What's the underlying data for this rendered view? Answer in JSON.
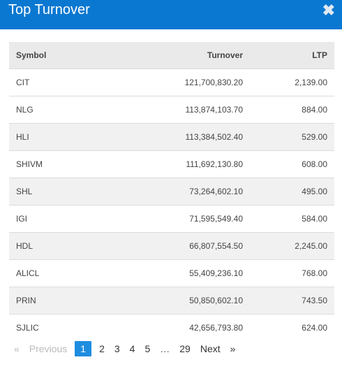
{
  "header": {
    "title": "Top Turnover",
    "close_icon": "close-icon"
  },
  "table": {
    "columns": {
      "symbol": "Symbol",
      "turnover": "Turnover",
      "ltp": "LTP"
    },
    "rows": [
      {
        "symbol": "CIT",
        "turnover": "121,700,830.20",
        "ltp": "2,139.00"
      },
      {
        "symbol": "NLG",
        "turnover": "113,874,103.70",
        "ltp": "884.00"
      },
      {
        "symbol": "HLI",
        "turnover": "113,384,502.40",
        "ltp": "529.00"
      },
      {
        "symbol": "SHIVM",
        "turnover": "111,692,130.80",
        "ltp": "608.00"
      },
      {
        "symbol": "SHL",
        "turnover": "73,264,602.10",
        "ltp": "495.00"
      },
      {
        "symbol": "IGI",
        "turnover": "71,595,549.40",
        "ltp": "584.00"
      },
      {
        "symbol": "HDL",
        "turnover": "66,807,554.50",
        "ltp": "2,245.00"
      },
      {
        "symbol": "ALICL",
        "turnover": "55,409,236.10",
        "ltp": "768.00"
      },
      {
        "symbol": "PRIN",
        "turnover": "50,850,602.10",
        "ltp": "743.50"
      },
      {
        "symbol": "SJLIC",
        "turnover": "42,656,793.80",
        "ltp": "624.00"
      }
    ]
  },
  "pagination": {
    "first": "«",
    "previous": "Previous",
    "pages": [
      "1",
      "2",
      "3",
      "4",
      "5"
    ],
    "active_page": "1",
    "ellipsis": "…",
    "last_page": "29",
    "next": "Next",
    "last": "»"
  },
  "colors": {
    "header_bg": "#0a78d1",
    "active_page_bg": "#1d8de0"
  }
}
